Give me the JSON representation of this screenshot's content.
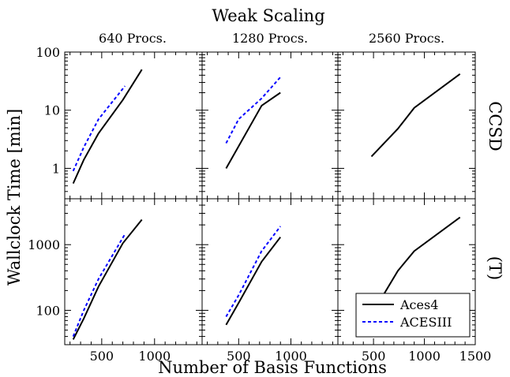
{
  "chart_data": {
    "type": "line",
    "title": "Weak Scaling",
    "xlabel": "Number of Basis Functions",
    "ylabel": "Wallclock Time [min]",
    "column_titles": [
      "640 Procs.",
      "1280 Procs.",
      "2560 Procs."
    ],
    "row_labels": [
      "CCSD",
      "(T)"
    ],
    "y_scale": "log",
    "row_ylim": [
      [
        0.3,
        100
      ],
      [
        30,
        5000
      ]
    ],
    "row_yticks": [
      [
        1,
        10,
        100
      ],
      [
        100,
        1000
      ]
    ],
    "row_ytick_labels": [
      [
        "1",
        "10",
        "100"
      ],
      [
        "100",
        "1000"
      ]
    ],
    "col_xlim": [
      [
        150,
        1450
      ],
      [
        150,
        1450
      ],
      [
        150,
        1500
      ]
    ],
    "col_xticks": [
      [
        500,
        1000
      ],
      [
        500,
        1000
      ],
      [
        500,
        1000,
        1500
      ]
    ],
    "col_xtick_labels": [
      [
        "500",
        "1000"
      ],
      [
        "500",
        "1000"
      ],
      [
        "500",
        "1000",
        "1500"
      ]
    ],
    "legend": {
      "position": "bottom-right",
      "entries": [
        "Aces4",
        "ACESIII"
      ]
    },
    "series_styles": {
      "Aces4": {
        "color": "#000000",
        "dash": "solid"
      },
      "ACESIII": {
        "color": "#0000ff",
        "dash": "dashed"
      }
    },
    "panels": [
      {
        "row": 0,
        "col": 0,
        "series": [
          {
            "name": "Aces4",
            "x": [
              230,
              330,
              470,
              700,
              880
            ],
            "y": [
              0.55,
              1.4,
              4,
              15,
              50
            ]
          },
          {
            "name": "ACESIII",
            "x": [
              230,
              330,
              470,
              720
            ],
            "y": [
              0.9,
              2.3,
              7,
              26
            ]
          }
        ]
      },
      {
        "row": 0,
        "col": 1,
        "series": [
          {
            "name": "Aces4",
            "x": [
              380,
              720,
              900
            ],
            "y": [
              1.0,
              12,
              20
            ]
          },
          {
            "name": "ACESIII",
            "x": [
              380,
              500,
              720,
              900
            ],
            "y": [
              2.7,
              7,
              16,
              37
            ]
          }
        ]
      },
      {
        "row": 0,
        "col": 2,
        "series": [
          {
            "name": "Aces4",
            "x": [
              480,
              740,
              900,
              1350
            ],
            "y": [
              1.6,
              4.8,
              11,
              42
            ]
          }
        ]
      },
      {
        "row": 1,
        "col": 0,
        "series": [
          {
            "name": "Aces4",
            "x": [
              230,
              330,
              470,
              700,
              880
            ],
            "y": [
              36,
              75,
              230,
              1050,
              2400
            ]
          },
          {
            "name": "ACESIII",
            "x": [
              230,
              330,
              470,
              720
            ],
            "y": [
              40,
              100,
              300,
              1450
            ]
          }
        ]
      },
      {
        "row": 1,
        "col": 1,
        "series": [
          {
            "name": "Aces4",
            "x": [
              380,
              500,
              720,
              900
            ],
            "y": [
              60,
              130,
              550,
              1300
            ]
          },
          {
            "name": "ACESIII",
            "x": [
              380,
              500,
              720,
              900
            ],
            "y": [
              80,
              170,
              800,
              1900
            ]
          }
        ]
      },
      {
        "row": 1,
        "col": 2,
        "series": [
          {
            "name": "Aces4",
            "x": [
              480,
              740,
              900,
              1350
            ],
            "y": [
              85,
              400,
              800,
              2600
            ]
          }
        ]
      }
    ]
  }
}
